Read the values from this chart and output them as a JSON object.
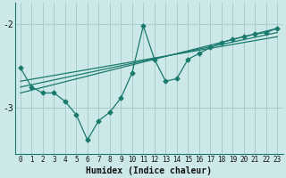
{
  "xlabel": "Humidex (Indice chaleur)",
  "ylabel": "",
  "background_color": "#cce8e8",
  "grid_color": "#aacccc",
  "line_color": "#1a7a6e",
  "xlim": [
    -0.5,
    23.5
  ],
  "ylim": [
    -3.55,
    -1.75
  ],
  "yticks": [
    -3,
    -2
  ],
  "x": [
    0,
    1,
    2,
    3,
    4,
    5,
    6,
    7,
    8,
    9,
    10,
    11,
    12,
    13,
    14,
    15,
    16,
    17,
    18,
    19,
    20,
    21,
    22,
    23
  ],
  "series1": [
    -2.52,
    -2.75,
    -2.82,
    -2.82,
    -2.92,
    -3.08,
    -3.38,
    -3.15,
    -3.05,
    -2.88,
    -2.58,
    -2.02,
    -2.42,
    -2.68,
    -2.65,
    -2.42,
    -2.35,
    -2.28,
    -2.22,
    -2.18,
    -2.15,
    -2.12,
    -2.1,
    -2.05
  ],
  "series2_x": [
    0,
    23
  ],
  "series2_y": [
    -2.82,
    -2.05
  ],
  "series3_x": [
    0,
    23
  ],
  "series3_y": [
    -2.75,
    -2.1
  ],
  "series4_x": [
    0,
    23
  ],
  "series4_y": [
    -2.68,
    -2.15
  ]
}
